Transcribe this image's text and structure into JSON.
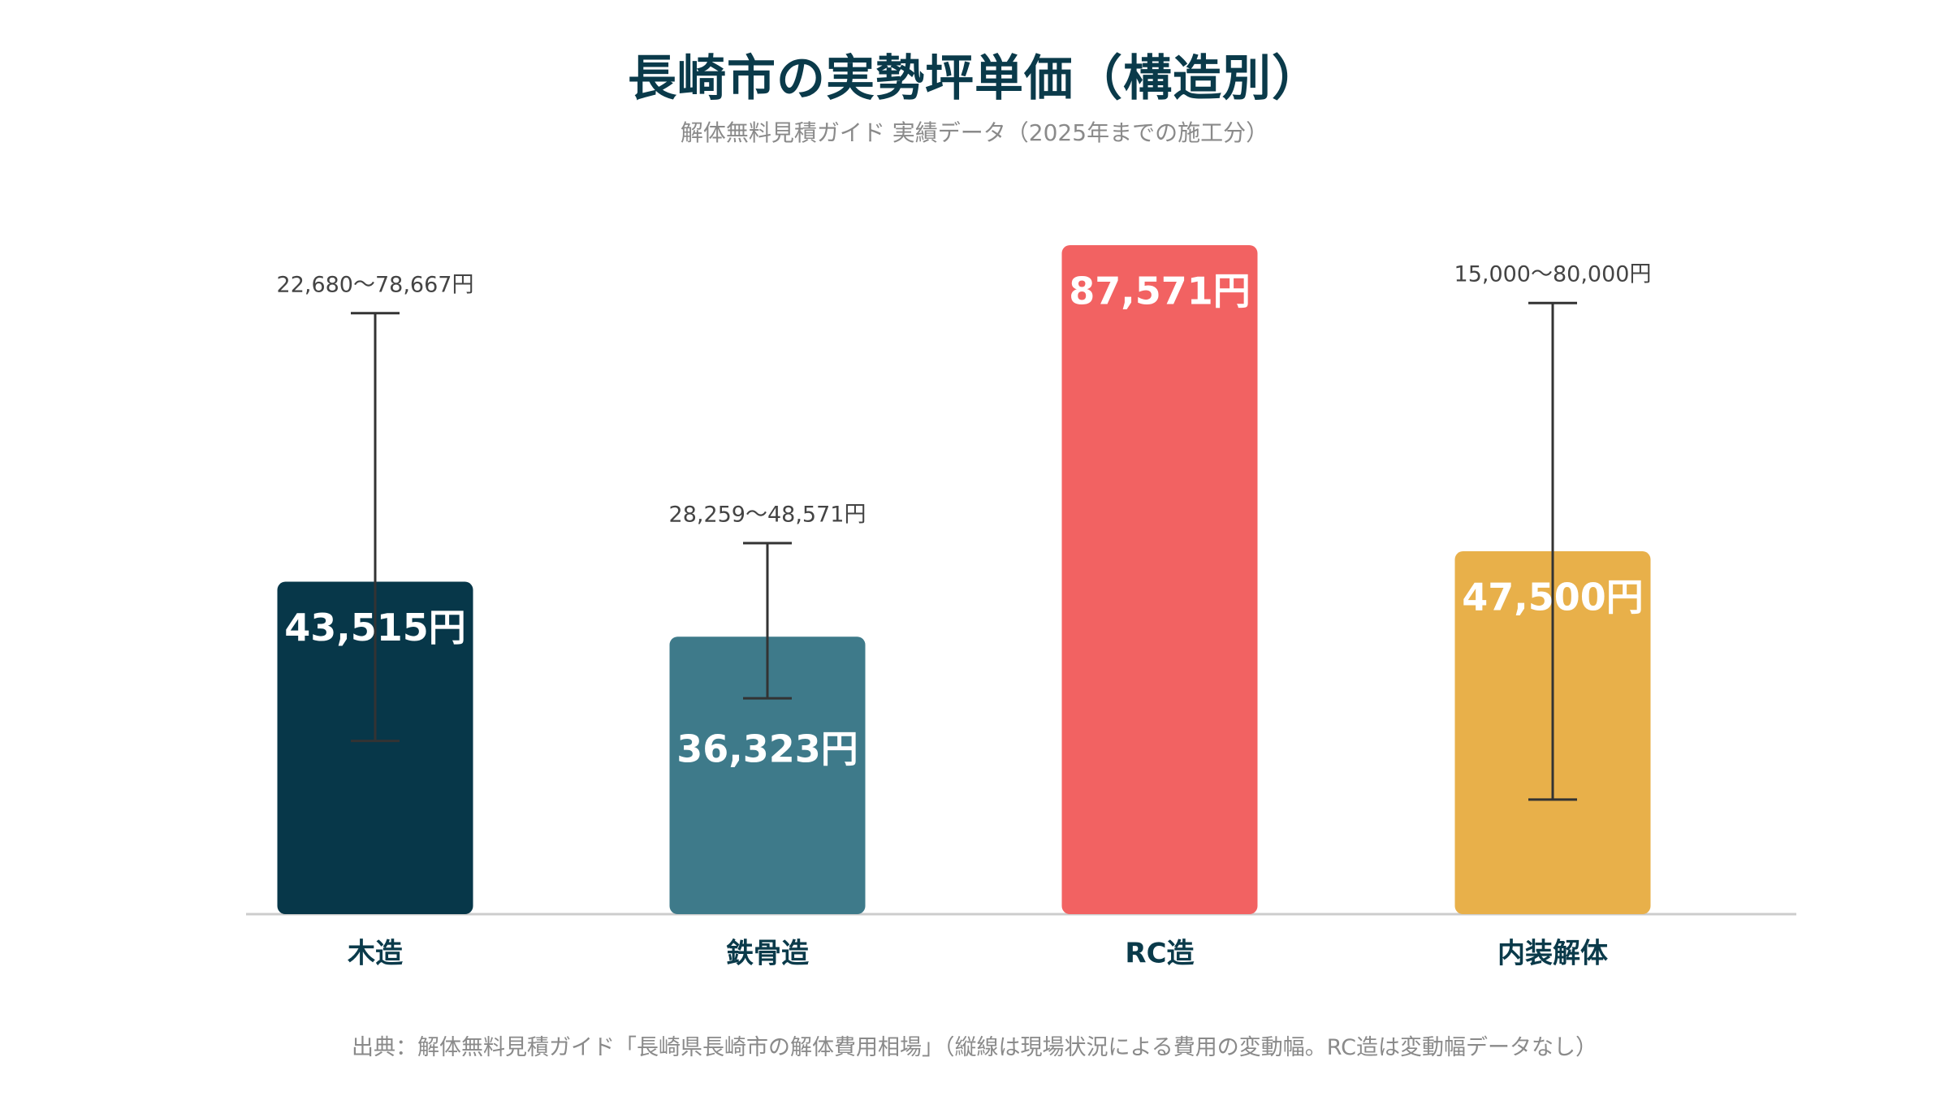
{
  "chart_data": {
    "type": "bar",
    "title": "長崎市の実勢坪単価（構造別）",
    "subtitle": "解体無料見積ガイド 実績データ（2025年までの施工分）",
    "source": "出典：解体無料見積ガイド「長崎県長崎市の解体費用相場」（縦線は現場状況による費用の変動幅。RC造は変動幅データなし）",
    "unit": "円",
    "categories": [
      "木造",
      "鉄骨造",
      "RC造",
      "内装解体"
    ],
    "values": [
      43515,
      36323,
      87571,
      47500
    ],
    "value_labels": [
      "43,515円",
      "36,323円",
      "87,571円",
      "47,500円"
    ],
    "ranges": [
      {
        "low": 22680,
        "high": 78667,
        "label": "22,680〜78,667円"
      },
      {
        "low": 28259,
        "high": 48571,
        "label": "28,259〜48,571円"
      },
      null,
      {
        "low": 15000,
        "high": 80000,
        "label": "15,000〜80,000円"
      }
    ],
    "colors": [
      "#073749",
      "#3e7a8a",
      "#f26262",
      "#e8b04a"
    ],
    "ylim": [
      0,
      90000
    ],
    "grid": false,
    "legend": "none"
  }
}
